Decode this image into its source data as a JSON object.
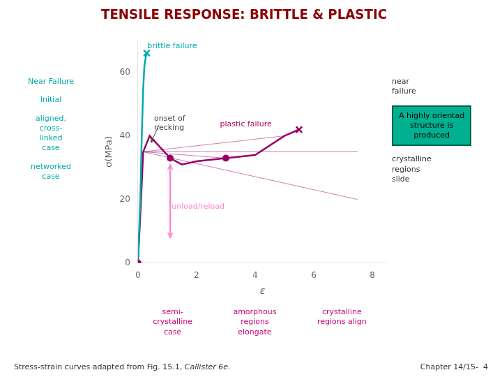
{
  "chart_data": {
    "type": "line",
    "title": "TENSILE RESPONSE: BRITTLE & PLASTIC",
    "title_color": "#8B0000",
    "x_label": "ε",
    "y_label": "σ(MPa)",
    "xlim": [
      0,
      8.5
    ],
    "ylim": [
      0,
      70
    ],
    "xticks": [
      0,
      2,
      4,
      6,
      8
    ],
    "yticks": [
      0,
      20,
      40,
      60
    ],
    "grid": false,
    "series": [
      {
        "type": "line",
        "color": "#00AAAA",
        "x": [
          0.0,
          0.08,
          0.13,
          0.18,
          0.22,
          0.27,
          0.3
        ],
        "values": [
          0,
          20,
          40,
          55,
          62,
          65,
          66
        ]
      },
      {
        "type": "scatter",
        "marker": "cross",
        "color": "#00AAAA",
        "x": [
          0.3
        ],
        "values": [
          66
        ]
      },
      {
        "type": "line",
        "color": "#990066",
        "x": [
          0.0,
          0.08,
          0.18,
          0.4,
          0.7,
          1.1,
          1.5,
          2.0,
          3.0,
          4.0,
          5.0,
          5.5
        ],
        "values": [
          0,
          15,
          35,
          40,
          37,
          33,
          31,
          32,
          33,
          34,
          40,
          42
        ]
      },
      {
        "type": "scatter",
        "marker": "cross",
        "color": "#990066",
        "x": [
          5.5
        ],
        "values": [
          42
        ]
      },
      {
        "type": "scatter",
        "marker": "circle",
        "color": "#990066",
        "x": [
          1.1,
          3.0,
          0.0
        ],
        "values": [
          33,
          33,
          0.0
        ]
      },
      {
        "type": "line",
        "marker": "arrow",
        "color": "#FF88CC",
        "x": [
          1.1,
          1.1
        ],
        "values": [
          8,
          31
        ]
      },
      {
        "type": "line",
        "line_style": "thin",
        "color": "#990066",
        "x": [
          0.18,
          3.0
        ],
        "values": [
          35,
          33
        ]
      },
      {
        "type": "line",
        "line_style": "thin",
        "color": "#990066",
        "x": [
          0.18,
          5.0
        ],
        "values": [
          35,
          40
        ]
      },
      {
        "type": "line",
        "line_style": "thin",
        "color": "#990066",
        "x": [
          0.18,
          7.5
        ],
        "values": [
          35,
          35
        ]
      },
      {
        "type": "line",
        "line_style": "thin",
        "color": "#990066",
        "x": [
          0.18,
          7.5
        ],
        "values": [
          35,
          20
        ]
      }
    ],
    "annotations": [
      {
        "text": "brittle failure",
        "x": 0.32,
        "y": 67.5,
        "color": "#00AAAA"
      },
      {
        "text": "plastic failure",
        "x": 2.8,
        "y": 43,
        "color": "#AA0066"
      },
      {
        "text": "onset of\nnecking",
        "x": 0.55,
        "y": 42,
        "color": "#444444",
        "arrow_from": [
          0.72,
          43.5
        ],
        "arrow_to": [
          0.45,
          38
        ]
      },
      {
        "text": "unload/reload",
        "x": 1.15,
        "y": 17,
        "color": "#FF88CC"
      }
    ],
    "left_notes": [
      {
        "text": "Near Failure",
        "color": "#00AAAA"
      },
      {
        "text": "Initial",
        "color": "#00AAAA"
      },
      {
        "text": "aligned,\ncross-\nlinked\ncase",
        "color": "#00AAAA"
      },
      {
        "text": "networked\ncase",
        "color": "#00AAAA"
      }
    ],
    "right_notes": [
      {
        "text": "near\nfailure",
        "color": "#333333"
      },
      {
        "text": "A highly orientad\nstructure is\nproduced",
        "color": "#000000",
        "box_color": "#00B090",
        "box_edge_color": "#006050"
      },
      {
        "text": "crystalline\nregions\nslide",
        "color": "#333333"
      }
    ],
    "bottom_notes": [
      {
        "text": "semi-\ncrystalline\ncase",
        "color": "#CC0077"
      },
      {
        "text": "amorphous\nregions\nelongate",
        "color": "#CC0077"
      },
      {
        "text": "crystalline\nregions align",
        "color": "#CC0077"
      }
    ],
    "footer": [
      [
        {
          "text": "Stress-strain curves adapted from Fig. 15.1, ",
          "color": "#333333"
        },
        {
          "text": "Callister 6e.",
          "color": "#333333",
          "italic": true
        }
      ],
      [
        {
          "text": "Chapter 14/15-  4",
          "color": "#333333"
        }
      ]
    ]
  }
}
